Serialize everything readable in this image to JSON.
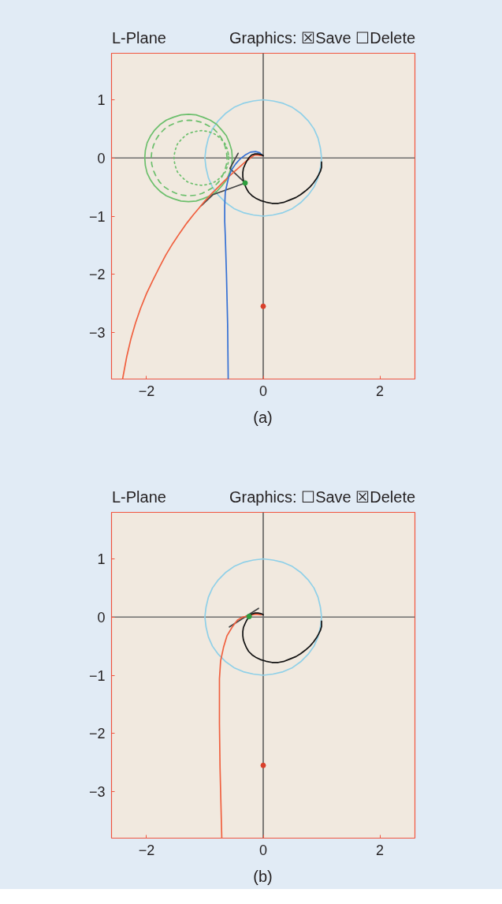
{
  "chart_data": [
    {
      "type": "line",
      "title": "L-Plane",
      "subtitle": "Graphics: ☒Save ☐Delete",
      "annotations": [
        "(a)"
      ],
      "xlim": [
        -2.6,
        2.6
      ],
      "ylim": [
        -3.8,
        1.8
      ],
      "xticks": [
        {
          "value": -2,
          "label": "−2"
        },
        {
          "value": 0,
          "label": "0"
        },
        {
          "value": 2,
          "label": "2"
        }
      ],
      "yticks": [
        {
          "value": 1,
          "label": "1"
        },
        {
          "value": 0,
          "label": "0"
        },
        {
          "value": -1,
          "label": "−1"
        },
        {
          "value": -2,
          "label": "−2"
        },
        {
          "value": -3,
          "label": "−3"
        }
      ],
      "ref_lines": [
        {
          "axis": "x",
          "value": 0,
          "color": "#4a4a4a"
        },
        {
          "axis": "y",
          "value": 0,
          "color": "#6e6e6e"
        }
      ],
      "series": [
        {
          "color": "#8fd0e8",
          "x": [
            1,
            0.98,
            0.94,
            0.87,
            0.77,
            0.64,
            0.5,
            0.34,
            0.17,
            0,
            -0.17,
            -0.34,
            -0.5,
            -0.64,
            -0.77,
            -0.87,
            -0.94,
            -0.98,
            -1,
            -0.98,
            -0.94,
            -0.87,
            -0.77,
            -0.64,
            -0.5,
            -0.34,
            -0.17,
            0,
            0.17,
            0.34,
            0.5,
            0.64,
            0.77,
            0.87,
            0.94,
            0.98,
            1,
            0.98
          ],
          "values": [
            0,
            0.17,
            0.34,
            0.5,
            0.64,
            0.77,
            0.87,
            0.94,
            0.98,
            1,
            0.98,
            0.94,
            0.87,
            0.77,
            0.64,
            0.5,
            0.34,
            0.17,
            0,
            -0.17,
            -0.34,
            -0.5,
            -0.64,
            -0.77,
            -0.87,
            -0.94,
            -0.98,
            -1,
            -0.98,
            -0.94,
            -0.87,
            -0.77,
            -0.64,
            -0.5,
            -0.34,
            -0.17,
            0,
            0.17
          ]
        },
        {
          "color": "#6cbf6c",
          "x": [
            -0.53,
            -0.54,
            -0.58,
            -0.63,
            -0.71,
            -0.8,
            -0.91,
            -1.03,
            -1.15,
            -1.28,
            -1.41,
            -1.54,
            -1.66,
            -1.76,
            -1.86,
            -1.93,
            -1.99,
            -2.02,
            -2.03,
            -2.02,
            -1.99,
            -1.93,
            -1.86,
            -1.76,
            -1.66,
            -1.54,
            -1.41,
            -1.28,
            -1.15,
            -1.03,
            -0.91,
            -0.8,
            -0.71,
            -0.63,
            -0.58,
            -0.54,
            -0.53,
            -0.54
          ],
          "values": [
            0,
            0.13,
            0.26,
            0.38,
            0.48,
            0.58,
            0.65,
            0.7,
            0.74,
            0.75,
            0.74,
            0.7,
            0.65,
            0.58,
            0.48,
            0.38,
            0.26,
            0.13,
            0,
            -0.13,
            -0.26,
            -0.38,
            -0.48,
            -0.58,
            -0.65,
            -0.7,
            -0.74,
            -0.75,
            -0.74,
            -0.7,
            -0.65,
            -0.58,
            -0.48,
            -0.38,
            -0.26,
            -0.13,
            0,
            0.13
          ]
        },
        {
          "color": "#6cbf6c",
          "line_style": "dashed",
          "x": [
            -0.62,
            -0.63,
            -0.66,
            -0.71,
            -0.77,
            -0.85,
            -0.95,
            -1.05,
            -1.16,
            -1.27,
            -1.38,
            -1.49,
            -1.6,
            -1.69,
            -1.77,
            -1.83,
            -1.88,
            -1.91,
            -1.92,
            -1.91,
            -1.88,
            -1.83,
            -1.77,
            -1.69,
            -1.6,
            -1.49,
            -1.38,
            -1.27,
            -1.16,
            -1.05,
            -0.95,
            -0.85,
            -0.77,
            -0.71,
            -0.66,
            -0.63,
            -0.62,
            -0.63
          ],
          "values": [
            0,
            0.11,
            0.22,
            0.33,
            0.42,
            0.5,
            0.56,
            0.61,
            0.64,
            0.65,
            0.64,
            0.61,
            0.56,
            0.5,
            0.42,
            0.33,
            0.22,
            0.11,
            0,
            -0.11,
            -0.22,
            -0.33,
            -0.42,
            -0.5,
            -0.56,
            -0.61,
            -0.64,
            -0.65,
            -0.64,
            -0.61,
            -0.56,
            -0.5,
            -0.42,
            -0.33,
            -0.22,
            -0.11,
            0,
            0.11
          ]
        },
        {
          "color": "#6cbf6c",
          "line_style": "dotted",
          "x": [
            -0.59,
            -0.6,
            -0.62,
            -0.65,
            -0.7,
            -0.76,
            -0.83,
            -0.9,
            -0.98,
            -1.06,
            -1.14,
            -1.22,
            -1.3,
            -1.36,
            -1.42,
            -1.47,
            -1.5,
            -1.52,
            -1.53,
            -1.52,
            -1.5,
            -1.47,
            -1.42,
            -1.36,
            -1.3,
            -1.22,
            -1.14,
            -1.06,
            -0.98,
            -0.9,
            -0.83,
            -0.76,
            -0.7,
            -0.65,
            -0.62,
            -0.6,
            -0.59,
            -0.6
          ],
          "values": [
            0,
            0.08,
            0.16,
            0.24,
            0.3,
            0.36,
            0.41,
            0.44,
            0.46,
            0.47,
            0.46,
            0.44,
            0.41,
            0.36,
            0.3,
            0.24,
            0.16,
            0.08,
            0,
            -0.08,
            -0.16,
            -0.24,
            -0.3,
            -0.36,
            -0.41,
            -0.44,
            -0.46,
            -0.47,
            -0.46,
            -0.44,
            -0.41,
            -0.36,
            -0.3,
            -0.24,
            -0.16,
            -0.08,
            0,
            0.08
          ]
        },
        {
          "color": "#444444",
          "x": [
            -1.06,
            -0.86,
            -0.31,
            -0.57,
            -0.43
          ],
          "values": [
            -0.82,
            -0.63,
            -0.43,
            -0.18,
            0.08
          ]
        },
        {
          "color": "#f0603f",
          "x": [
            -0.02,
            -0.09,
            -0.15,
            -0.22,
            -0.31,
            -0.4,
            -0.5,
            -0.6,
            -0.7,
            -0.8,
            -0.9,
            -1.0,
            -1.1,
            -1.2,
            -1.31,
            -1.43,
            -1.55,
            -1.67,
            -1.78,
            -1.89,
            -2.0,
            -2.1,
            -2.19,
            -2.27,
            -2.34,
            -2.41
          ],
          "values": [
            0.04,
            0.05,
            0.05,
            0.0,
            -0.07,
            -0.15,
            -0.24,
            -0.33,
            -0.43,
            -0.53,
            -0.63,
            -0.74,
            -0.86,
            -0.98,
            -1.12,
            -1.29,
            -1.47,
            -1.67,
            -1.88,
            -2.1,
            -2.33,
            -2.58,
            -2.84,
            -3.12,
            -3.42,
            -3.8
          ]
        },
        {
          "color": "#3570d4",
          "x": [
            -0.02,
            -0.06,
            -0.13,
            -0.22,
            -0.31,
            -0.4,
            -0.47,
            -0.54,
            -0.59,
            -0.62,
            -0.65,
            -0.66,
            -0.66,
            -0.65,
            -0.63,
            -0.61,
            -0.6
          ],
          "values": [
            0.05,
            0.09,
            0.11,
            0.1,
            0.05,
            -0.02,
            -0.1,
            -0.2,
            -0.32,
            -0.45,
            -0.59,
            -0.82,
            -1.09,
            -1.34,
            -1.99,
            -2.85,
            -3.8
          ]
        },
        {
          "color": "#111111",
          "x": [
            0.0,
            -0.04,
            -0.09,
            -0.14,
            -0.2,
            -0.24,
            -0.28,
            -0.31,
            -0.34,
            -0.35,
            -0.35,
            -0.34,
            -0.32,
            -0.29,
            -0.25,
            -0.19,
            -0.13,
            -0.05,
            0.05,
            0.15,
            0.26,
            0.36,
            0.46,
            0.56,
            0.64,
            0.72,
            0.8,
            0.86,
            0.91,
            0.95,
            0.98,
            1.0,
            1.0
          ],
          "values": [
            0.04,
            0.06,
            0.07,
            0.07,
            0.05,
            0.01,
            -0.05,
            -0.11,
            -0.18,
            -0.25,
            -0.32,
            -0.39,
            -0.45,
            -0.52,
            -0.59,
            -0.65,
            -0.69,
            -0.73,
            -0.76,
            -0.78,
            -0.78,
            -0.76,
            -0.72,
            -0.68,
            -0.63,
            -0.57,
            -0.5,
            -0.43,
            -0.36,
            -0.29,
            -0.23,
            -0.16,
            -0.07
          ]
        },
        {
          "type": "scatter",
          "color": "#2e9e3e",
          "marker": "circle",
          "x": [
            -0.31
          ],
          "values": [
            -0.43
          ]
        },
        {
          "type": "scatter",
          "color": "#d9402b",
          "marker": "circle",
          "x": [
            0.0
          ],
          "values": [
            -2.55
          ]
        }
      ]
    },
    {
      "type": "line",
      "title": "L-Plane",
      "subtitle": "Graphics: ☐Save ☒Delete",
      "annotations": [
        "(b)"
      ],
      "xlim": [
        -2.6,
        2.6
      ],
      "ylim": [
        -3.8,
        1.8
      ],
      "xticks": [
        {
          "value": -2,
          "label": "−2"
        },
        {
          "value": 0,
          "label": "0"
        },
        {
          "value": 2,
          "label": "2"
        }
      ],
      "yticks": [
        {
          "value": 1,
          "label": "1"
        },
        {
          "value": 0,
          "label": "0"
        },
        {
          "value": -1,
          "label": "−1"
        },
        {
          "value": -2,
          "label": "−2"
        },
        {
          "value": -3,
          "label": "−3"
        }
      ],
      "ref_lines": [
        {
          "axis": "x",
          "value": 0,
          "color": "#4a4a4a"
        },
        {
          "axis": "y",
          "value": 0,
          "color": "#6e6e6e"
        }
      ],
      "series": [
        {
          "color": "#8fd0e8",
          "x": [
            1,
            0.98,
            0.94,
            0.87,
            0.77,
            0.64,
            0.5,
            0.34,
            0.17,
            0,
            -0.17,
            -0.34,
            -0.5,
            -0.64,
            -0.77,
            -0.87,
            -0.94,
            -0.98,
            -1,
            -0.98,
            -0.94,
            -0.87,
            -0.77,
            -0.64,
            -0.5,
            -0.34,
            -0.17,
            0,
            0.17,
            0.34,
            0.5,
            0.64,
            0.77,
            0.87,
            0.94,
            0.98,
            1,
            0.98
          ],
          "values": [
            0,
            0.17,
            0.34,
            0.5,
            0.64,
            0.77,
            0.87,
            0.94,
            0.98,
            1,
            0.98,
            0.94,
            0.87,
            0.77,
            0.64,
            0.5,
            0.34,
            0.17,
            0,
            -0.17,
            -0.34,
            -0.5,
            -0.64,
            -0.77,
            -0.87,
            -0.94,
            -0.98,
            -1,
            -0.98,
            -0.94,
            -0.87,
            -0.77,
            -0.64,
            -0.5,
            -0.34,
            -0.17,
            0,
            0.17
          ]
        },
        {
          "color": "#444444",
          "x": [
            -0.58,
            -0.08
          ],
          "values": [
            -0.17,
            0.15
          ]
        },
        {
          "color": "#f0603f",
          "x": [
            -0.03,
            -0.14,
            -0.26,
            -0.35,
            -0.44,
            -0.53,
            -0.62,
            -0.68,
            -0.73,
            -0.75,
            -0.75,
            -0.74,
            -0.71
          ],
          "values": [
            0.04,
            0.05,
            0.02,
            0.0,
            -0.05,
            -0.17,
            -0.32,
            -0.52,
            -0.75,
            -1.06,
            -1.83,
            -2.59,
            -3.8
          ]
        },
        {
          "color": "#111111",
          "x": [
            0.0,
            -0.04,
            -0.09,
            -0.14,
            -0.2,
            -0.24,
            -0.28,
            -0.31,
            -0.34,
            -0.35,
            -0.35,
            -0.34,
            -0.32,
            -0.29,
            -0.25,
            -0.19,
            -0.13,
            -0.05,
            0.05,
            0.15,
            0.26,
            0.36,
            0.46,
            0.56,
            0.64,
            0.72,
            0.8,
            0.86,
            0.91,
            0.95,
            0.98,
            1.0,
            1.0
          ],
          "values": [
            0.04,
            0.06,
            0.07,
            0.07,
            0.05,
            0.01,
            -0.05,
            -0.11,
            -0.18,
            -0.25,
            -0.32,
            -0.39,
            -0.45,
            -0.52,
            -0.59,
            -0.65,
            -0.69,
            -0.73,
            -0.76,
            -0.78,
            -0.78,
            -0.76,
            -0.72,
            -0.68,
            -0.63,
            -0.57,
            -0.5,
            -0.43,
            -0.36,
            -0.29,
            -0.23,
            -0.16,
            -0.07
          ]
        },
        {
          "type": "scatter",
          "color": "#2e9e3e",
          "marker": "circle",
          "x": [
            -0.24
          ],
          "values": [
            0.01
          ]
        },
        {
          "type": "scatter",
          "color": "#d9402b",
          "marker": "circle",
          "x": [
            0.0
          ],
          "values": [
            -2.55
          ]
        }
      ]
    }
  ]
}
